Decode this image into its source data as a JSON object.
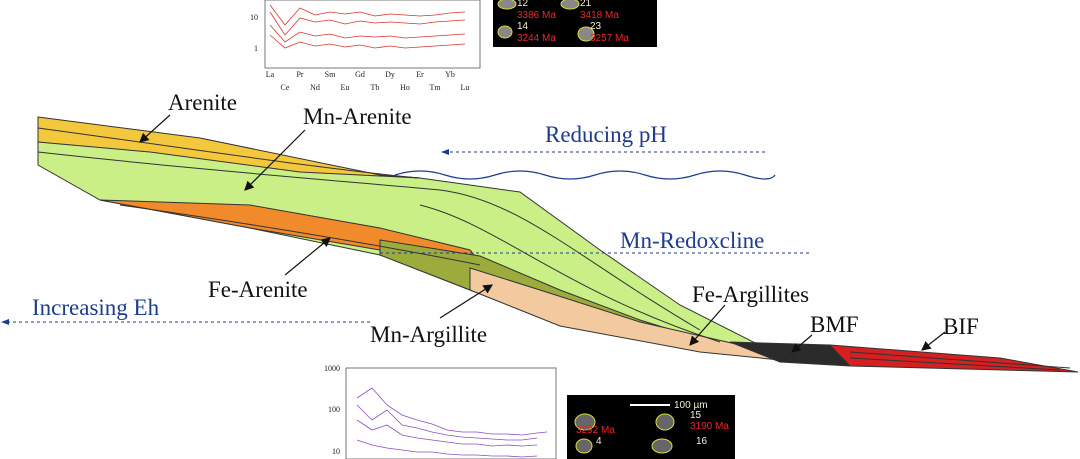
{
  "labels": {
    "arenite": "Arenite",
    "mn_arenite": "Mn-Arenite",
    "reducing_ph": "Reducing pH",
    "mn_redoxcline": "Mn-Redoxcline",
    "fe_arenite": "Fe-Arenite",
    "increasing_eh": "Increasing Eh",
    "fe_argillites": "Fe-Argillites",
    "mn_argillite": "Mn-Argillite",
    "bmf": "BMF",
    "bif": "BIF"
  },
  "top_inset": {
    "ree_labels": [
      "La",
      "Ce",
      "Pr",
      "Nd",
      "Sm",
      "Eu",
      "Gd",
      "Tb",
      "Dy",
      "Ho",
      "Er",
      "Tm",
      "Yb",
      "Lu"
    ],
    "y_labels": [
      "10",
      "1"
    ],
    "zircons": [
      {
        "id": "12",
        "age": "3386 Ma"
      },
      {
        "id": "21",
        "age": "3418 Ma"
      },
      {
        "id": "14",
        "age": "3244 Ma"
      },
      {
        "id": "23",
        "age": "3257 Ma"
      }
    ]
  },
  "bottom_inset": {
    "y_labels": [
      "1000",
      "100",
      "10"
    ],
    "scale": "100 µm",
    "zircons": [
      {
        "id": "15",
        "age": "3190 Ma"
      },
      {
        "age": "3292 Ma"
      },
      {
        "id": "4"
      },
      {
        "id": "16"
      }
    ]
  }
}
